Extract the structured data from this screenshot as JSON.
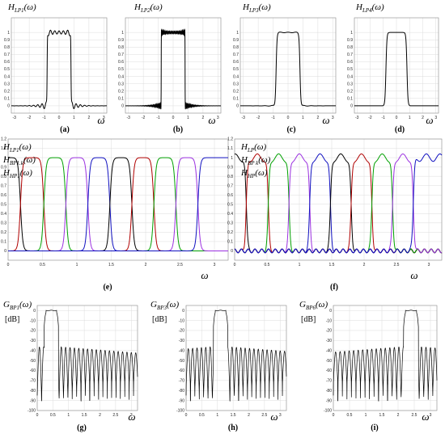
{
  "chart_data": [
    {
      "id": "a",
      "type": "line",
      "caption": "(a)",
      "ylabel_base": "H",
      "ylabel_sub": "LP1",
      "ylabel_arg": "(ω)",
      "xlabel": "ω",
      "xlim": [
        -3.2,
        3.2
      ],
      "ylim": [
        -0.1,
        1.2
      ],
      "xticks": [
        -3,
        -2,
        -1,
        0,
        1,
        2,
        3
      ],
      "xtick_labels": [
        "-3",
        "-2",
        "-1",
        "0",
        "1",
        "2",
        "3"
      ],
      "yticks": [
        0,
        0.1,
        0.2,
        0.3,
        0.4,
        0.5,
        0.6,
        0.7,
        0.8,
        0.9,
        1
      ],
      "ytick_labels": [
        "0",
        "0.1",
        "0.2",
        "0.3",
        "0.4",
        "0.5",
        "0.6",
        "0.7",
        "0.8",
        "0.9",
        "1"
      ],
      "grid": true,
      "series": [
        {
          "kind": "lowpass",
          "cutoff": 0.8,
          "transition": 0.06,
          "ripple": 0.06,
          "freq": 22,
          "color": "#000"
        }
      ]
    },
    {
      "id": "b",
      "type": "line",
      "caption": "(b)",
      "ylabel_base": "H",
      "ylabel_sub": "LP2",
      "ylabel_arg": "(ω)",
      "xlabel": "ω",
      "xlim": [
        -3.2,
        3.2
      ],
      "ylim": [
        -0.1,
        1.2
      ],
      "xticks": [
        -3,
        -2,
        -1,
        0,
        1,
        2,
        3
      ],
      "xtick_labels": [
        "-3",
        "-2",
        "-1",
        "0",
        "1",
        "2",
        "3"
      ],
      "yticks": [
        0,
        0.1,
        0.2,
        0.3,
        0.4,
        0.5,
        0.6,
        0.7,
        0.8,
        0.9,
        1
      ],
      "ytick_labels": [
        "0",
        "0.1",
        "0.2",
        "0.3",
        "0.4",
        "0.5",
        "0.6",
        "0.7",
        "0.8",
        "0.9",
        "1"
      ],
      "grid": true,
      "series": [
        {
          "kind": "lowpass",
          "cutoff": 0.8,
          "transition": 0.02,
          "ripple": 0.05,
          "freq": 80,
          "color": "#000"
        }
      ]
    },
    {
      "id": "c",
      "type": "line",
      "caption": "(c)",
      "ylabel_base": "H",
      "ylabel_sub": "LP3",
      "ylabel_arg": "(ω)",
      "xlabel": "ω",
      "xlim": [
        -3.2,
        3.2
      ],
      "ylim": [
        -0.1,
        1.2
      ],
      "xticks": [
        -3,
        -2,
        -1,
        0,
        1,
        2,
        3
      ],
      "xtick_labels": [
        "-3",
        "-2",
        "-1",
        "0",
        "1",
        "2",
        "3"
      ],
      "yticks": [
        0,
        0.1,
        0.2,
        0.3,
        0.4,
        0.5,
        0.6,
        0.7,
        0.8,
        0.9,
        1
      ],
      "ytick_labels": [
        "0",
        "0.1",
        "0.2",
        "0.3",
        "0.4",
        "0.5",
        "0.6",
        "0.7",
        "0.8",
        "0.9",
        "1"
      ],
      "grid": true,
      "series": [
        {
          "kind": "lowpass",
          "cutoff": 0.8,
          "transition": 0.18,
          "ripple": 0.01,
          "freq": 12,
          "color": "#000"
        }
      ]
    },
    {
      "id": "d",
      "type": "line",
      "caption": "(d)",
      "ylabel_base": "H",
      "ylabel_sub": "LP4",
      "ylabel_arg": "(ω)",
      "xlabel": "ω",
      "xlim": [
        -3.2,
        3.2
      ],
      "ylim": [
        -0.1,
        1.2
      ],
      "xticks": [
        -3,
        -2,
        -1,
        0,
        1,
        2,
        3
      ],
      "xtick_labels": [
        "-3",
        "-2",
        "-1",
        "0",
        "1",
        "2",
        "3"
      ],
      "yticks": [
        0,
        0.1,
        0.2,
        0.3,
        0.4,
        0.5,
        0.6,
        0.7,
        0.8,
        0.9,
        1
      ],
      "ytick_labels": [
        "0",
        "0.1",
        "0.2",
        "0.3",
        "0.4",
        "0.5",
        "0.6",
        "0.7",
        "0.8",
        "0.9",
        "1"
      ],
      "grid": true,
      "series": [
        {
          "kind": "lowpass",
          "cutoff": 0.8,
          "transition": 0.22,
          "ripple": 0,
          "freq": 0,
          "color": "#000"
        }
      ]
    },
    {
      "id": "e",
      "type": "line",
      "caption": "(e)",
      "ylabels": [
        {
          "base": "H",
          "sub": "LP1",
          "arg": "(ω)"
        },
        {
          "base": "H",
          "sub": "BP1.k",
          "arg": "(ω)"
        },
        {
          "base": "H",
          "sub": "HP1",
          "arg": "(ω)"
        }
      ],
      "xlabel": "ω",
      "xlim": [
        0,
        3.2
      ],
      "ylim": [
        -0.1,
        1.2
      ],
      "xticks": [
        0,
        0.5,
        1,
        1.5,
        2,
        2.5,
        3
      ],
      "xtick_labels": [
        "0",
        "0.5",
        "1",
        "1.5",
        "2",
        "2.5",
        "3"
      ],
      "yticks": [
        0,
        0.1,
        0.2,
        0.3,
        0.4,
        0.5,
        0.6,
        0.7,
        0.8,
        0.9,
        1,
        1.1,
        1.2
      ],
      "ytick_labels": [
        "0",
        "0.1",
        "0.2",
        "0.3",
        "0.4",
        "0.5",
        "0.6",
        "0.7",
        "0.8",
        "0.9",
        "1",
        "1.1",
        "1.2"
      ],
      "grid": true,
      "ripple": 0,
      "trans": 0.1,
      "bands": [
        {
          "lo": -1,
          "hi": 0.18,
          "color": "#000"
        },
        {
          "lo": 0.18,
          "hi": 0.52,
          "color": "#b00000"
        },
        {
          "lo": 0.52,
          "hi": 0.84,
          "color": "#00a000"
        },
        {
          "lo": 0.84,
          "hi": 1.16,
          "color": "#9b30e0"
        },
        {
          "lo": 1.16,
          "hi": 1.48,
          "color": "#1010c0"
        },
        {
          "lo": 1.48,
          "hi": 1.8,
          "color": "#000"
        },
        {
          "lo": 1.8,
          "hi": 2.12,
          "color": "#b00000"
        },
        {
          "lo": 2.12,
          "hi": 2.44,
          "color": "#00a000"
        },
        {
          "lo": 2.44,
          "hi": 2.76,
          "color": "#9b30e0"
        },
        {
          "lo": 2.76,
          "hi": 4,
          "color": "#1010c0"
        }
      ]
    },
    {
      "id": "f",
      "type": "line",
      "caption": "(f)",
      "ylabels": [
        {
          "base": "H",
          "sub": "LP",
          "arg": "(ω)"
        },
        {
          "base": "H",
          "sub": "BP k",
          "arg": "(ω)"
        },
        {
          "base": "H",
          "sub": "HP",
          "arg": "(ω)"
        }
      ],
      "xlabel": "ω",
      "xlim": [
        0,
        3.2
      ],
      "ylim": [
        -0.1,
        1.2
      ],
      "xticks": [
        0,
        0.5,
        1,
        1.5,
        2,
        2.5,
        3
      ],
      "xtick_labels": [
        "0",
        "0.5",
        "1",
        "1.5",
        "2",
        "2.5",
        "3"
      ],
      "yticks": [
        0,
        0.1,
        0.2,
        0.3,
        0.4,
        0.5,
        0.6,
        0.7,
        0.8,
        0.9,
        1,
        1.1,
        1.2
      ],
      "ytick_labels": [
        "0",
        "0.1",
        "0.2",
        "0.3",
        "0.4",
        "0.5",
        "0.6",
        "0.7",
        "0.8",
        "0.9",
        "1",
        "1.1",
        "1.2"
      ],
      "grid": true,
      "ripple": 0.04,
      "trans": 0.07,
      "bands": [
        {
          "lo": -1,
          "hi": 0.18,
          "color": "#000"
        },
        {
          "lo": 0.18,
          "hi": 0.52,
          "color": "#b00000"
        },
        {
          "lo": 0.52,
          "hi": 0.84,
          "color": "#00a000"
        },
        {
          "lo": 0.84,
          "hi": 1.16,
          "color": "#9b30e0"
        },
        {
          "lo": 1.16,
          "hi": 1.48,
          "color": "#1010c0"
        },
        {
          "lo": 1.48,
          "hi": 1.8,
          "color": "#000"
        },
        {
          "lo": 1.8,
          "hi": 2.12,
          "color": "#b00000"
        },
        {
          "lo": 2.12,
          "hi": 2.44,
          "color": "#00a000"
        },
        {
          "lo": 2.44,
          "hi": 2.76,
          "color": "#9b30e0"
        },
        {
          "lo": 2.76,
          "hi": 4,
          "color": "#1010c0"
        }
      ]
    },
    {
      "id": "g",
      "type": "line",
      "caption": "(g)",
      "ylabel_base": "G",
      "ylabel_sub": "BP1",
      "ylabel_arg": "(ω)",
      "yunit": "[dB]",
      "xlabel": "ω",
      "xlim": [
        0,
        3.2
      ],
      "ylim": [
        -100,
        5
      ],
      "xticks": [
        0,
        0.5,
        1,
        1.5,
        2,
        2.5,
        3
      ],
      "xtick_labels": [
        "0",
        "0.5",
        "1",
        "1.5",
        "2",
        "2.5",
        "3"
      ],
      "yticks": [
        0,
        -10,
        -20,
        -30,
        -40,
        -50,
        -60,
        -70,
        -80,
        -90,
        -100
      ],
      "ytick_labels": [
        "0",
        "-10",
        "-20",
        "-30",
        "-40",
        "-50",
        "-60",
        "-70",
        "-80",
        "-90",
        "-100"
      ],
      "grid": true,
      "series": [
        {
          "kind": "db",
          "center": 0.45,
          "halfwidth": 0.17,
          "floor": -40,
          "color": "#000"
        }
      ]
    },
    {
      "id": "h",
      "type": "line",
      "caption": "(h)",
      "ylabel_base": "G",
      "ylabel_sub": "BP3",
      "ylabel_arg": "(ω)",
      "yunit": "[dB]",
      "xlabel": "ω",
      "xlim": [
        0,
        3.2
      ],
      "ylim": [
        -100,
        5
      ],
      "xticks": [
        0,
        0.5,
        1,
        1.5,
        2,
        2.5,
        3
      ],
      "xtick_labels": [
        "0",
        "0.5",
        "1",
        "1.5",
        "2",
        "2.5",
        "3"
      ],
      "yticks": [
        0,
        -10,
        -20,
        -30,
        -40,
        -50,
        -60,
        -70,
        -80,
        -90,
        -100
      ],
      "ytick_labels": [
        "0",
        "-10",
        "-20",
        "-30",
        "-40",
        "-50",
        "-60",
        "-70",
        "-80",
        "-90",
        "-100"
      ],
      "grid": true,
      "series": [
        {
          "kind": "db",
          "center": 1.1,
          "halfwidth": 0.17,
          "floor": -40,
          "color": "#000"
        }
      ]
    },
    {
      "id": "i",
      "type": "line",
      "caption": "(i)",
      "ylabel_base": "G",
      "ylabel_sub": "BP6",
      "ylabel_arg": "(ω)",
      "yunit": "[dB]",
      "xlabel": "ω",
      "xlim": [
        0,
        3.2
      ],
      "ylim": [
        -100,
        5
      ],
      "xticks": [
        0,
        0.5,
        1,
        1.5,
        2,
        2.5,
        3
      ],
      "xtick_labels": [
        "0",
        "0.5",
        "1",
        "1.5",
        "2",
        "2.5",
        "3"
      ],
      "yticks": [
        0,
        -10,
        -20,
        -30,
        -40,
        -50,
        -60,
        -70,
        -80,
        -90,
        -100
      ],
      "ytick_labels": [
        "0",
        "-10",
        "-20",
        "-30",
        "-40",
        "-50",
        "-60",
        "-70",
        "-80",
        "-90",
        "-100"
      ],
      "grid": true,
      "series": [
        {
          "kind": "db",
          "center": 2.4,
          "halfwidth": 0.17,
          "floor": -40,
          "color": "#000"
        }
      ]
    }
  ]
}
